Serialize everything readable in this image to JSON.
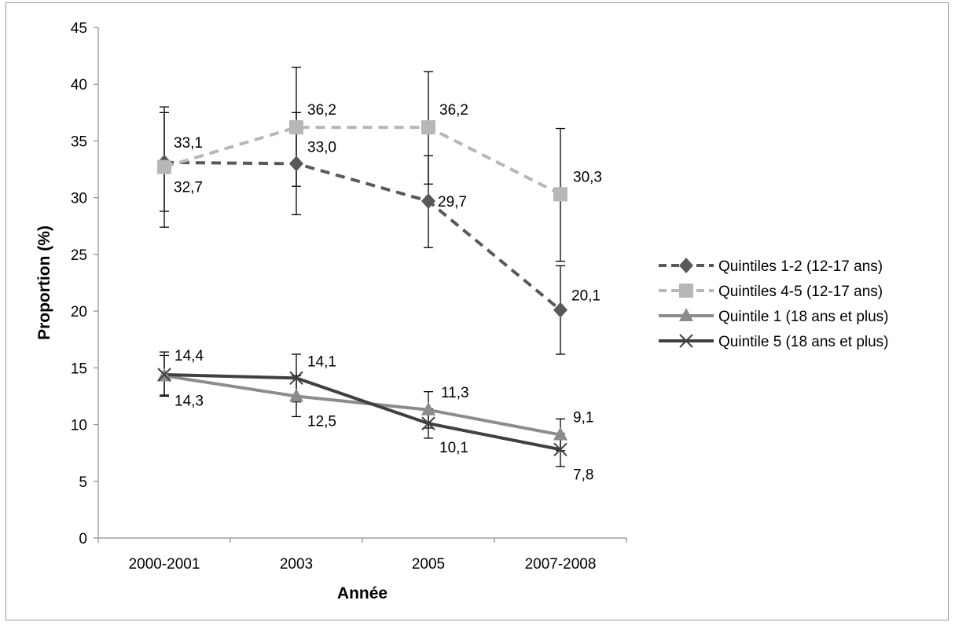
{
  "chart_data": {
    "type": "line",
    "title": "",
    "xlabel": "Année",
    "ylabel": "Proportion (%)",
    "categories": [
      "2000-2001",
      "2003",
      "2005",
      "2007-2008"
    ],
    "ylim": [
      0,
      45
    ],
    "yticks": [
      0,
      5,
      10,
      15,
      20,
      25,
      30,
      35,
      40,
      45
    ],
    "y_tick_labels": [
      "0",
      "5",
      "10",
      "15",
      "20",
      "25",
      "30",
      "35",
      "40",
      "45"
    ],
    "grid": false,
    "legend_position": "right",
    "series": [
      {
        "name": "Quintiles 1-2 (12-17 ans)",
        "values": [
          33.1,
          33.0,
          29.7,
          20.1
        ],
        "labels": [
          "33,1",
          "33,0",
          "29,7",
          "20,1"
        ],
        "ci_low": [
          28.8,
          28.5,
          25.6,
          16.2
        ],
        "ci_high": [
          37.5,
          37.5,
          33.7,
          24.0
        ],
        "color": "#595959",
        "marker": "diamond",
        "dash": "dashed"
      },
      {
        "name": "Quintiles 4-5 (12-17 ans)",
        "values": [
          32.7,
          36.2,
          36.2,
          30.3
        ],
        "labels": [
          "32,7",
          "36,2",
          "36,2",
          "30,3"
        ],
        "ci_low": [
          27.4,
          31.0,
          31.2,
          24.4
        ],
        "ci_high": [
          38.0,
          41.5,
          41.1,
          36.1
        ],
        "color": "#b7b7b7",
        "marker": "square",
        "dash": "dashed"
      },
      {
        "name": "Quintile 1 (18 ans et plus)",
        "values": [
          14.3,
          12.5,
          11.3,
          9.1
        ],
        "labels": [
          "14,3",
          "12,5",
          "11,3",
          "9,1"
        ],
        "ci_low": [
          12.5,
          10.7,
          9.7,
          7.7
        ],
        "ci_high": [
          16.1,
          14.3,
          12.9,
          10.5
        ],
        "color": "#8c8c8c",
        "marker": "triangle",
        "dash": "solid"
      },
      {
        "name": "Quintile 5 (18 ans et plus)",
        "values": [
          14.4,
          14.1,
          10.1,
          7.8
        ],
        "labels": [
          "14,4",
          "14,1",
          "10,1",
          "7,8"
        ],
        "ci_low": [
          12.6,
          12.0,
          8.8,
          6.3
        ],
        "ci_high": [
          16.4,
          16.2,
          11.4,
          9.2
        ],
        "color": "#404040",
        "marker": "x",
        "dash": "solid"
      }
    ]
  }
}
